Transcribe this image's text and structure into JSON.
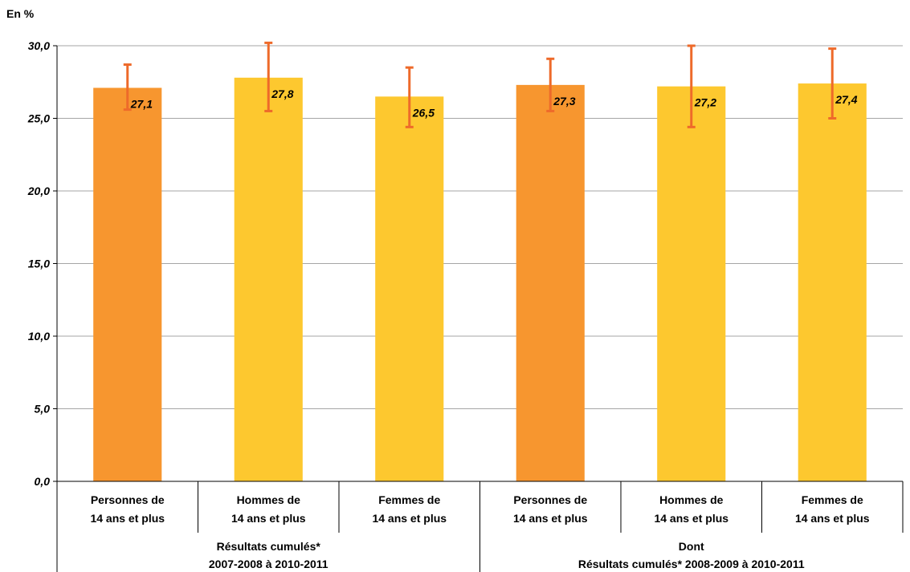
{
  "colors": {
    "personnes": "#f7962f",
    "genre": "#fdc82f",
    "error_bar": "#ee6a2a"
  },
  "chart_data": {
    "type": "bar",
    "ylabel": "En %",
    "ylim": [
      0,
      30
    ],
    "yticks": [
      "0,0",
      "5,0",
      "10,0",
      "15,0",
      "20,0",
      "25,0",
      "30,0"
    ],
    "grid": "horizontal",
    "groups": [
      {
        "label_lines": [
          "Résultats cumulés*",
          "2007-2008 à 2010-2011"
        ],
        "bars": [
          {
            "cat_lines": [
              "Personnes de",
              "14 ans et plus"
            ],
            "value": 27.1,
            "label": "27,1",
            "err_low": 25.6,
            "err_high": 28.7,
            "color": "personnes"
          },
          {
            "cat_lines": [
              "Hommes de",
              "14 ans et plus"
            ],
            "value": 27.8,
            "label": "27,8",
            "err_low": 25.5,
            "err_high": 30.2,
            "color": "genre"
          },
          {
            "cat_lines": [
              "Femmes de",
              "14 ans et plus"
            ],
            "value": 26.5,
            "label": "26,5",
            "err_low": 24.4,
            "err_high": 28.5,
            "color": "genre"
          }
        ]
      },
      {
        "label_lines": [
          "Dont",
          "Résultats cumulés* 2008-2009 à 2010-2011"
        ],
        "bars": [
          {
            "cat_lines": [
              "Personnes de",
              "14 ans et plus"
            ],
            "value": 27.3,
            "label": "27,3",
            "err_low": 25.5,
            "err_high": 29.1,
            "color": "personnes"
          },
          {
            "cat_lines": [
              "Hommes de",
              "14 ans et plus"
            ],
            "value": 27.2,
            "label": "27,2",
            "err_low": 24.4,
            "err_high": 30.0,
            "color": "genre"
          },
          {
            "cat_lines": [
              "Femmes de",
              "14 ans et plus"
            ],
            "value": 27.4,
            "label": "27,4",
            "err_low": 25.0,
            "err_high": 29.8,
            "color": "genre"
          }
        ]
      }
    ]
  }
}
